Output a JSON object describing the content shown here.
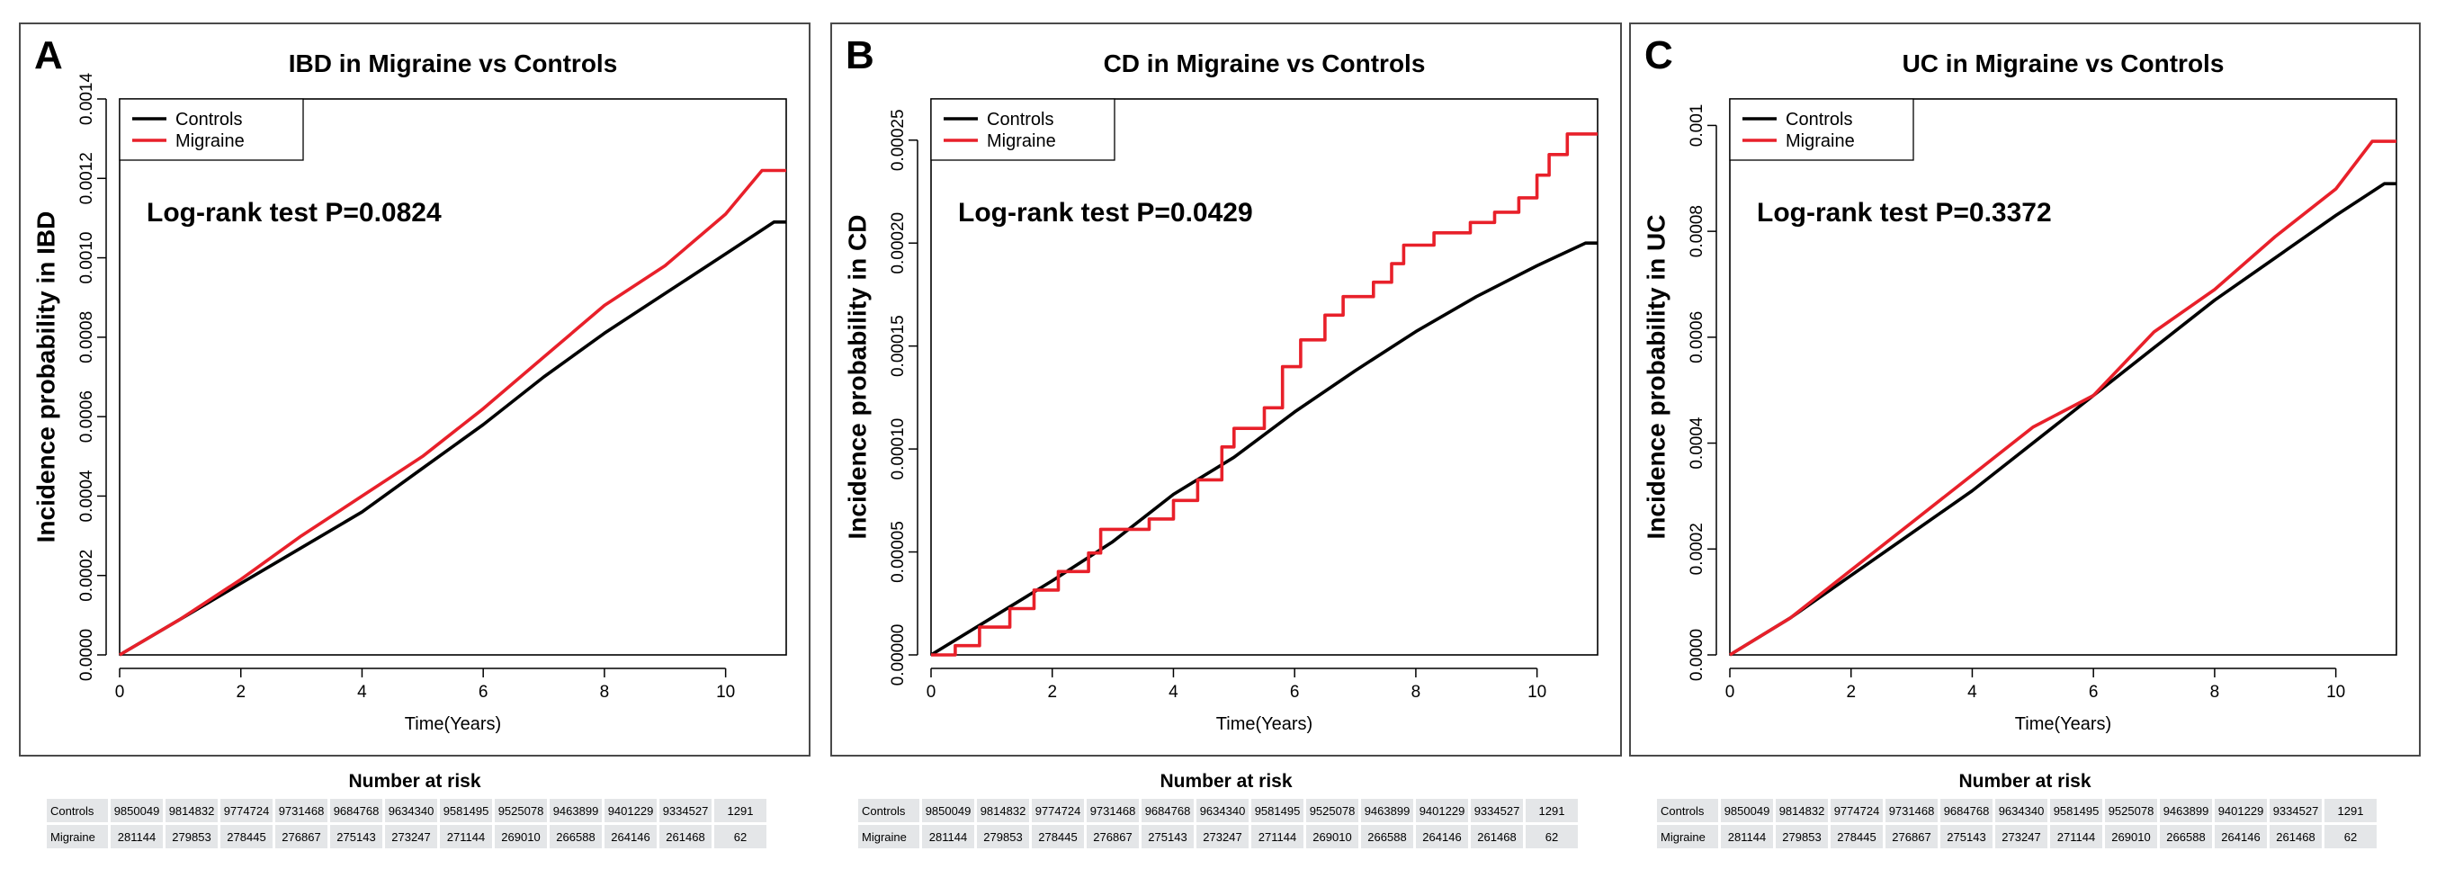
{
  "risk_table": {
    "title": "Number at risk",
    "rows": [
      {
        "label": "Controls",
        "values": [
          "9850049",
          "9814832",
          "9774724",
          "9731468",
          "9684768",
          "9634340",
          "9581495",
          "9525078",
          "9463899",
          "9401229",
          "9334527",
          "1291"
        ]
      },
      {
        "label": "Migraine",
        "values": [
          "281144",
          "279853",
          "278445",
          "276867",
          "275143",
          "273247",
          "271144",
          "269010",
          "266588",
          "264146",
          "261468",
          "62"
        ]
      }
    ]
  },
  "colors": {
    "controls": "#000000",
    "migraine": "#e8202a"
  },
  "chart_data": [
    {
      "type": "line",
      "panel": "A",
      "title": "IBD in Migraine vs Controls",
      "xlabel": "Time(Years)",
      "ylabel": "Incidence probability in IBD",
      "annotation": "Log-rank test P=0.0824",
      "xlim": [
        0,
        11
      ],
      "ylim": [
        0,
        0.0014
      ],
      "xticks": [
        "0",
        "2",
        "4",
        "6",
        "8",
        "10"
      ],
      "xtick_values": [
        0,
        2,
        4,
        6,
        8,
        10
      ],
      "yticks": [
        "0.0000",
        "0.0002",
        "0.0004",
        "0.0006",
        "0.0008",
        "0.0010",
        "0.0012",
        "0.0014"
      ],
      "ytick_values": [
        0,
        0.0002,
        0.0004,
        0.0006,
        0.0008,
        0.001,
        0.0012,
        0.0014
      ],
      "legend": {
        "position": "top-left",
        "entries": [
          "Controls",
          "Migraine"
        ]
      },
      "series": [
        {
          "name": "Controls",
          "step": false,
          "x": [
            0,
            1,
            2,
            3,
            4,
            5,
            6,
            7,
            8,
            9,
            10,
            10.8,
            11
          ],
          "y": [
            0,
            9e-05,
            0.00018,
            0.00027,
            0.00036,
            0.00047,
            0.00058,
            0.0007,
            0.00081,
            0.00091,
            0.00101,
            0.00109,
            0.00109
          ]
        },
        {
          "name": "Migraine",
          "step": false,
          "x": [
            0,
            1,
            2,
            3,
            4,
            5,
            6,
            7,
            8,
            9,
            10,
            10.6,
            11
          ],
          "y": [
            0,
            9e-05,
            0.00019,
            0.0003,
            0.0004,
            0.0005,
            0.00062,
            0.00075,
            0.00088,
            0.00098,
            0.00111,
            0.00122,
            0.00122
          ]
        }
      ]
    },
    {
      "type": "line",
      "panel": "B",
      "title": "CD in Migraine vs Controls",
      "xlabel": "Time(Years)",
      "ylabel": "Incidence probability in CD",
      "annotation": "Log-rank test P=0.0429",
      "xlim": [
        0,
        11
      ],
      "ylim": [
        0,
        0.00027
      ],
      "xticks": [
        "0",
        "2",
        "4",
        "6",
        "8",
        "10"
      ],
      "xtick_values": [
        0,
        2,
        4,
        6,
        8,
        10
      ],
      "yticks": [
        "0.00000",
        "0.00005",
        "0.00010",
        "0.00015",
        "0.00020",
        "0.00025"
      ],
      "ytick_values": [
        0,
        5e-05,
        0.0001,
        0.00015,
        0.0002,
        0.00025
      ],
      "legend": {
        "position": "top-left",
        "entries": [
          "Controls",
          "Migraine"
        ]
      },
      "series": [
        {
          "name": "Controls",
          "step": false,
          "x": [
            0,
            1,
            2,
            3,
            4,
            5,
            6,
            7,
            8,
            9,
            10,
            10.8,
            11
          ],
          "y": [
            0,
            1.8e-05,
            3.6e-05,
            5.5e-05,
            7.8e-05,
            9.6e-05,
            0.000118,
            0.000138,
            0.000157,
            0.000174,
            0.000189,
            0.0002,
            0.0002
          ]
        },
        {
          "name": "Migraine",
          "step": true,
          "x": [
            0,
            0.4,
            0.8,
            1.3,
            1.7,
            2.1,
            2.6,
            2.8,
            3.6,
            4.0,
            4.4,
            4.8,
            5.0,
            5.5,
            5.8,
            6.1,
            6.5,
            6.8,
            7.3,
            7.6,
            7.8,
            8.3,
            8.9,
            9.3,
            9.7,
            10.0,
            10.2,
            10.5,
            11.0
          ],
          "y": [
            0,
            4.5e-06,
            1.35e-05,
            2.25e-05,
            3.15e-05,
            4.05e-05,
            4.95e-05,
            6.1e-05,
            6.6e-05,
            7.5e-05,
            8.5e-05,
            0.000101,
            0.00011,
            0.00012,
            0.00014,
            0.000153,
            0.000165,
            0.000174,
            0.000181,
            0.00019,
            0.000199,
            0.000205,
            0.00021,
            0.000215,
            0.000222,
            0.000233,
            0.000243,
            0.000253,
            0.000253
          ]
        }
      ]
    },
    {
      "type": "line",
      "panel": "C",
      "title": "UC in Migraine vs Controls",
      "xlabel": "Time(Years)",
      "ylabel": "Incidence probability in UC",
      "annotation": "Log-rank test P=0.3372",
      "xlim": [
        0,
        11
      ],
      "ylim": [
        0,
        0.00105
      ],
      "xticks": [
        "0",
        "2",
        "4",
        "6",
        "8",
        "10"
      ],
      "xtick_values": [
        0,
        2,
        4,
        6,
        8,
        10
      ],
      "yticks": [
        "0.0000",
        "0.0002",
        "0.0004",
        "0.0006",
        "0.0008",
        "0.001"
      ],
      "ytick_values": [
        0,
        0.0002,
        0.0004,
        0.0006,
        0.0008,
        0.001
      ],
      "legend": {
        "position": "top-left",
        "entries": [
          "Controls",
          "Migraine"
        ]
      },
      "series": [
        {
          "name": "Controls",
          "step": false,
          "x": [
            0,
            1,
            2,
            3,
            4,
            5,
            6,
            7,
            8,
            9,
            10,
            10.8,
            11
          ],
          "y": [
            0,
            7e-05,
            0.00015,
            0.00023,
            0.00031,
            0.0004,
            0.00049,
            0.00058,
            0.00067,
            0.00075,
            0.00083,
            0.00089,
            0.00089
          ]
        },
        {
          "name": "Migraine",
          "step": false,
          "x": [
            0,
            1,
            2,
            3,
            4,
            5,
            6,
            7,
            8,
            9,
            10,
            10.6,
            11
          ],
          "y": [
            0,
            7e-05,
            0.00016,
            0.00025,
            0.00034,
            0.00043,
            0.00049,
            0.00061,
            0.00069,
            0.00079,
            0.00088,
            0.00097,
            0.00097
          ]
        }
      ]
    }
  ]
}
